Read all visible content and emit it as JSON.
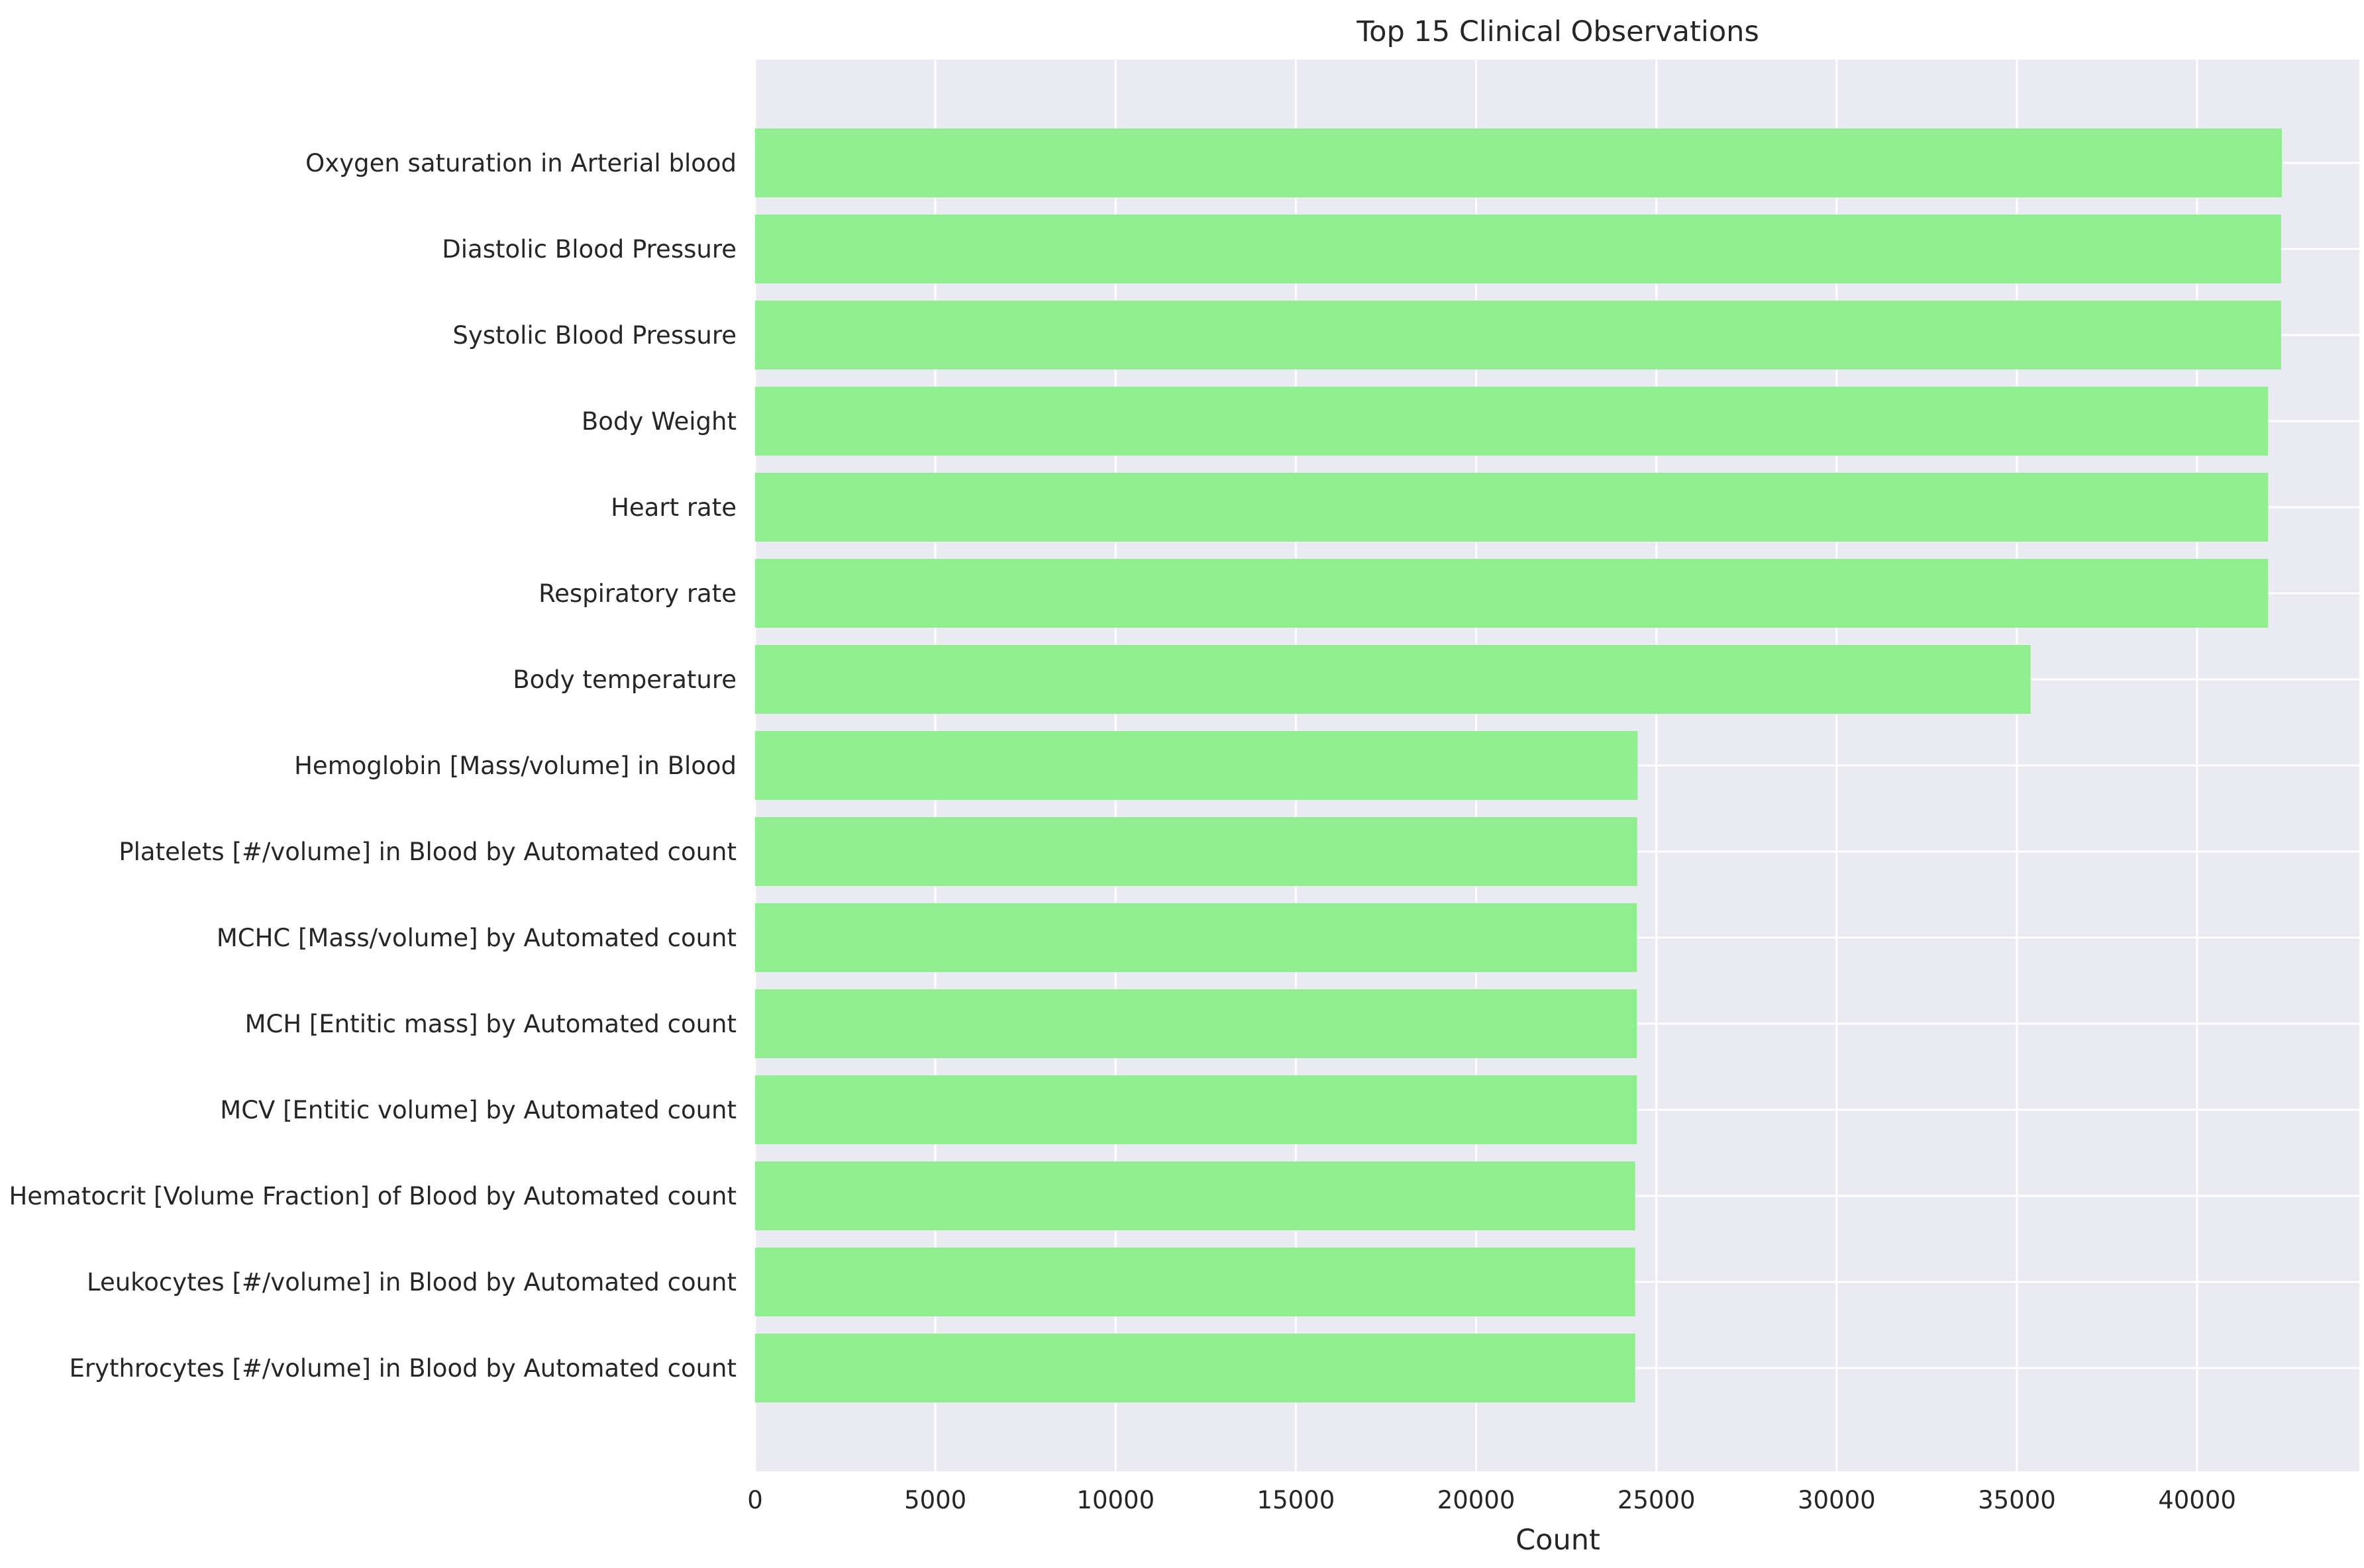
{
  "chart_data": {
    "type": "bar",
    "orientation": "horizontal",
    "title": "Top 15 Clinical Observations",
    "xlabel": "Count",
    "ylabel": "",
    "xlim": [
      0,
      44500
    ],
    "xticks": [
      0,
      5000,
      10000,
      15000,
      20000,
      25000,
      30000,
      35000,
      40000
    ],
    "grid": true,
    "background_color": "#eaeaf2",
    "grid_color": "#ffffff",
    "bar_color": "#90ee90",
    "categories": [
      "Oxygen saturation in Arterial blood",
      "Diastolic Blood Pressure",
      "Systolic Blood Pressure",
      "Body Weight",
      "Heart rate",
      "Respiratory rate",
      "Body temperature",
      "Hemoglobin [Mass/volume] in Blood",
      "Platelets [#/volume] in Blood by Automated count",
      "MCHC [Mass/volume] by Automated count",
      "MCH [Entitic mass] by Automated count",
      "MCV [Entitic volume] by Automated count",
      "Hematocrit [Volume Fraction] of Blood by Automated count",
      "Leukocytes [#/volume] in Blood by Automated count",
      "Erythrocytes [#/volume] in Blood by Automated count"
    ],
    "values": [
      42350,
      42330,
      42330,
      41970,
      41970,
      41970,
      35380,
      24480,
      24470,
      24460,
      24460,
      24460,
      24410,
      24410,
      24410
    ]
  }
}
